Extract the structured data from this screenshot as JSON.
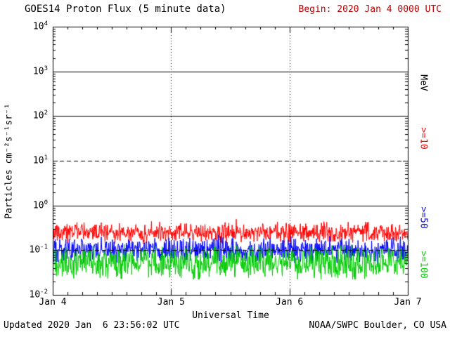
{
  "header": {
    "title": "GOES14 Proton Flux (5 minute data)",
    "begin_label": "Begin: 2020 Jan 4 0000 UTC",
    "begin_color": "#bb0000"
  },
  "footer": {
    "updated": "Updated 2020 Jan  6 23:56:02 UTC",
    "source": "NOAA/SWPC Boulder, CO USA"
  },
  "chart_data": {
    "type": "line",
    "title": "GOES14 Proton Flux (5 minute data)",
    "xlabel": "Universal Time",
    "ylabel": "Particles cm⁻²s⁻¹sr⁻¹",
    "x_tick_labels": [
      "Jan 4",
      "Jan 5",
      "Jan 6",
      "Jan 7"
    ],
    "x_range_days": 3,
    "points_per_day": 288,
    "y_scale": "log10",
    "ylim": [
      0.01,
      10000
    ],
    "y_tick_exponents": [
      4,
      3,
      2,
      1,
      0,
      -1,
      -2
    ],
    "right_axis_unit": "MeV",
    "h_gridlines": [
      {
        "value": 1000,
        "style": "solid"
      },
      {
        "value": 100,
        "style": "solid"
      },
      {
        "value": 10,
        "style": "dashed"
      },
      {
        "value": 1,
        "style": "solid"
      },
      {
        "value": 0.1,
        "style": "dashed"
      }
    ],
    "v_gridlines_at_ticks": [
      1,
      2
    ],
    "series": [
      {
        "label": ">=10",
        "units": "MeV",
        "color": "#ff0000",
        "baseline_flux": 0.25,
        "typical_min": 0.14,
        "typical_max": 0.62,
        "log10_jitter": 0.16
      },
      {
        "label": ">=50",
        "units": "MeV",
        "color": "#0000ff",
        "baseline_flux": 0.1,
        "typical_min": 0.05,
        "typical_max": 0.22,
        "log10_jitter": 0.2
      },
      {
        "label": ">=100",
        "units": "MeV",
        "color": "#00cc00",
        "baseline_flux": 0.052,
        "typical_min": 0.026,
        "typical_max": 0.19,
        "log10_jitter": 0.27
      }
    ],
    "noise_seed": 20200104
  }
}
